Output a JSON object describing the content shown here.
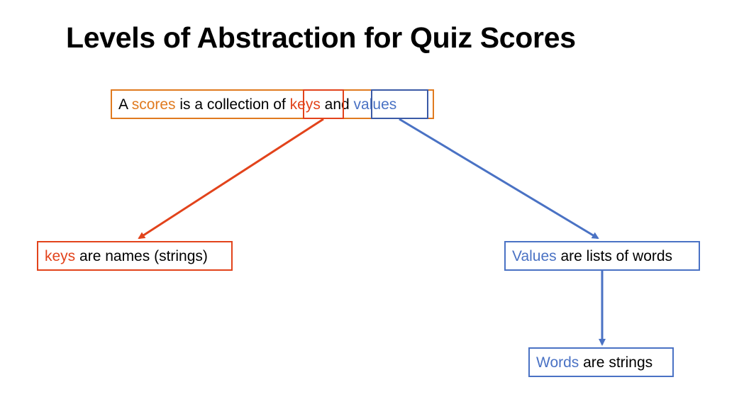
{
  "title": "Levels of Abstraction for Quiz Scores",
  "root": {
    "prefix": "A ",
    "scores": "scores",
    "mid": " is a collection of ",
    "keys": "keys",
    "and": " and ",
    "values": "values"
  },
  "keys_node": {
    "keys": "keys",
    "rest": " are names (strings)"
  },
  "values_node": {
    "values": "Values",
    "rest": " are lists of words"
  },
  "words_node": {
    "words": "Words",
    "rest": " are strings"
  },
  "colors": {
    "orange": "#e07a1f",
    "red": "#e2431b",
    "blue": "#4a72c4"
  }
}
